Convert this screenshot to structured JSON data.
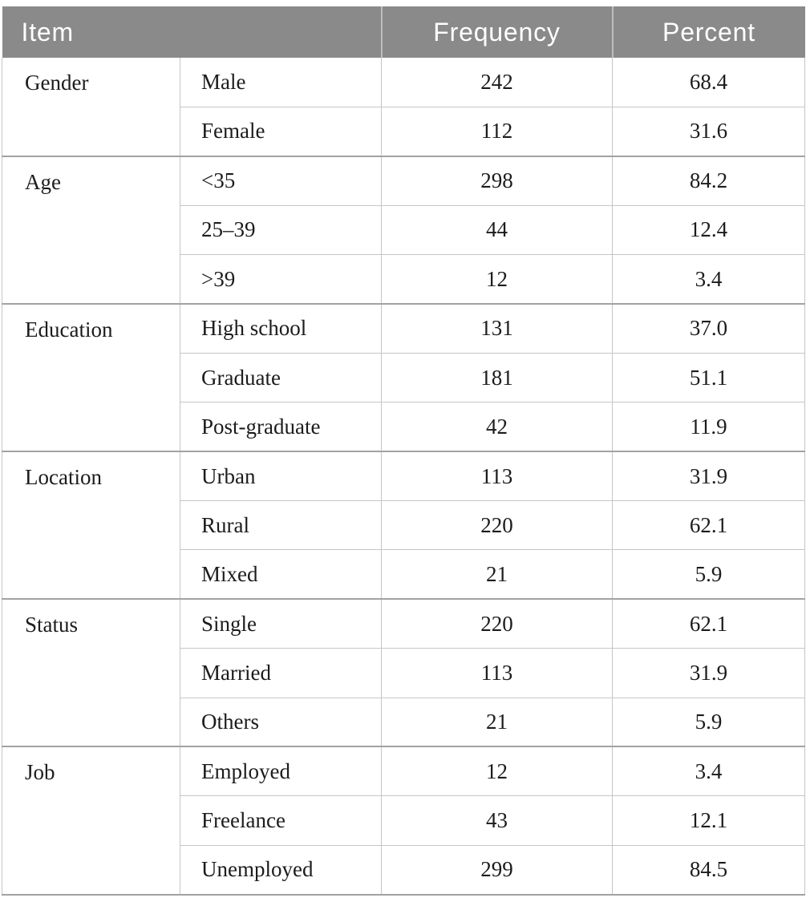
{
  "colors": {
    "header_bg": "#8a8a8a",
    "header_text": "#ffffff",
    "header_sep": "#bdbdbd",
    "border_light": "#c6c6c6",
    "border_dark": "#a2a2a2",
    "text": "#1c1c1c",
    "page_bg": "#ffffff"
  },
  "table": {
    "headers": {
      "item": "Item",
      "frequency": "Frequency",
      "percent": "Percent"
    },
    "groups": [
      {
        "label": "Gender",
        "rows": [
          [
            "Male",
            "242",
            "68.4"
          ],
          [
            "Female",
            "112",
            "31.6"
          ]
        ]
      },
      {
        "label": "Age",
        "rows": [
          [
            "<35",
            "298",
            "84.2"
          ],
          [
            "25–39",
            "44",
            "12.4"
          ],
          [
            ">39",
            "12",
            "3.4"
          ]
        ]
      },
      {
        "label": "Education",
        "rows": [
          [
            "High school",
            "131",
            "37.0"
          ],
          [
            "Graduate",
            "181",
            "51.1"
          ],
          [
            "Post-graduate",
            "42",
            "11.9"
          ]
        ]
      },
      {
        "label": "Location",
        "rows": [
          [
            "Urban",
            "113",
            "31.9"
          ],
          [
            "Rural",
            "220",
            "62.1"
          ],
          [
            "Mixed",
            "21",
            "5.9"
          ]
        ]
      },
      {
        "label": "Status",
        "rows": [
          [
            "Single",
            "220",
            "62.1"
          ],
          [
            "Married",
            "113",
            "31.9"
          ],
          [
            "Others",
            "21",
            "5.9"
          ]
        ]
      },
      {
        "label": "Job",
        "rows": [
          [
            "Employed",
            "12",
            "3.4"
          ],
          [
            "Freelance",
            "43",
            "12.1"
          ],
          [
            "Unemployed",
            "299",
            "84.5"
          ]
        ]
      }
    ]
  }
}
